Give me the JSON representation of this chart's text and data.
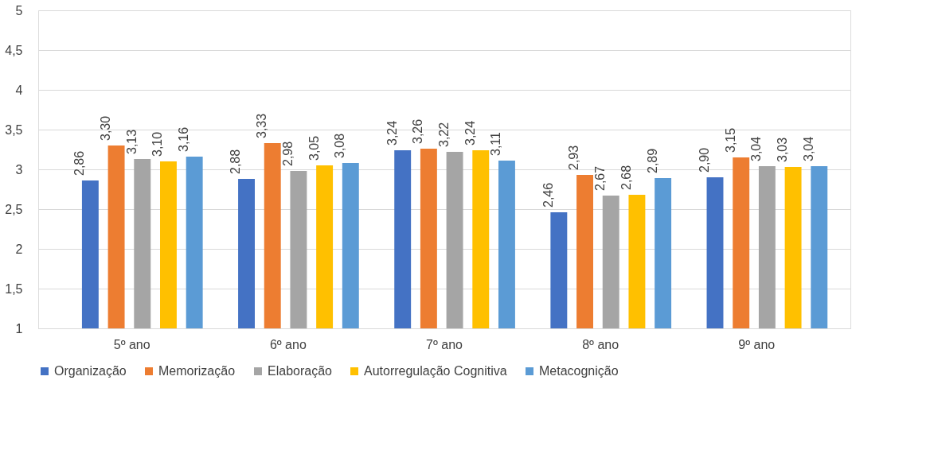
{
  "chart_data": {
    "type": "bar",
    "categories": [
      "5º ano",
      "6º ano",
      "7º ano",
      "8º ano",
      "9º ano"
    ],
    "series": [
      {
        "name": "Organização",
        "color": "#4472c4",
        "values": [
          2.86,
          2.88,
          3.24,
          2.46,
          2.9
        ],
        "value_labels": [
          "2,86",
          "2,88",
          "3,24",
          "2,46",
          "2,90"
        ]
      },
      {
        "name": "Memorização",
        "color": "#ed7d31",
        "values": [
          3.3,
          3.33,
          3.26,
          2.93,
          3.15
        ],
        "value_labels": [
          "3,30",
          "3,33",
          "3,26",
          "2,93",
          "3,15"
        ]
      },
      {
        "name": "Elaboração",
        "color": "#a5a5a5",
        "values": [
          3.13,
          2.98,
          3.22,
          2.67,
          3.04
        ],
        "value_labels": [
          "3,13",
          "2,98",
          "3,22",
          "2,67",
          "3,04"
        ]
      },
      {
        "name": "Autorregulação Cognitiva",
        "color": "#ffc000",
        "values": [
          3.1,
          3.05,
          3.24,
          2.68,
          3.03
        ],
        "value_labels": [
          "3,10",
          "3,05",
          "3,24",
          "2,68",
          "3,03"
        ]
      },
      {
        "name": "Metacognição",
        "color": "#5b9bd5",
        "values": [
          3.16,
          3.08,
          3.11,
          2.89,
          3.04
        ],
        "value_labels": [
          "3,16",
          "3,08",
          "3,11",
          "2,89",
          "3,04"
        ]
      }
    ],
    "ylim": [
      1,
      5
    ],
    "yticks": [
      1,
      {
        "value": 1.5,
        "label": "1,5"
      },
      2,
      {
        "value": 2.5,
        "label": "2,5"
      },
      3,
      {
        "value": 3.5,
        "label": "3,5"
      },
      4,
      {
        "value": 4.5,
        "label": "4,5"
      },
      5
    ],
    "grid": "y",
    "legend": "bottom"
  }
}
